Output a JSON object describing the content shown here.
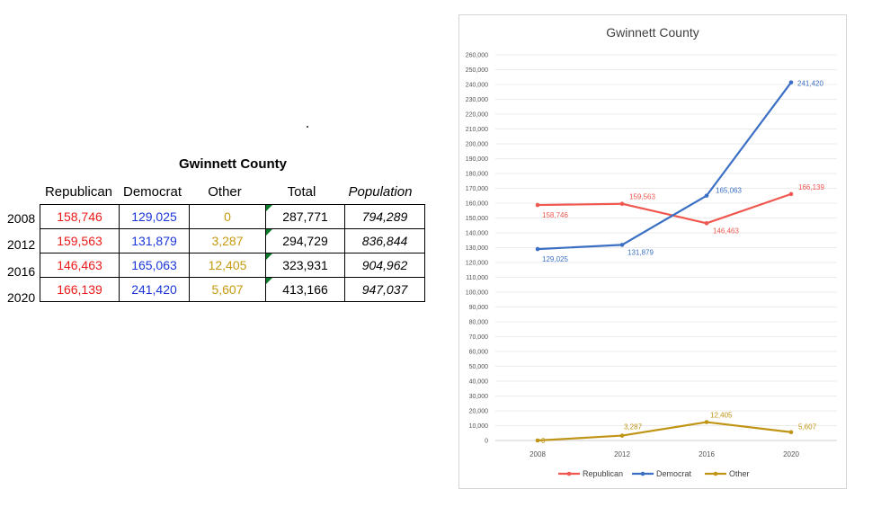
{
  "table": {
    "title": "Gwinnett County",
    "headers": [
      "Republican",
      "Democrat",
      "Other",
      "Total",
      "Population"
    ],
    "rows": [
      {
        "year": "2008",
        "republican": "158,746",
        "democrat": "129,025",
        "other": "0",
        "total": "287,771",
        "population": "794,289"
      },
      {
        "year": "2012",
        "republican": "159,563",
        "democrat": "131,879",
        "other": "3,287",
        "total": "294,729",
        "population": "836,844"
      },
      {
        "year": "2016",
        "republican": "146,463",
        "democrat": "165,063",
        "other": "12,405",
        "total": "323,931",
        "population": "904,962"
      },
      {
        "year": "2020",
        "republican": "166,139",
        "democrat": "241,420",
        "other": "5,607",
        "total": "413,166",
        "population": "947,037"
      }
    ]
  },
  "colors": {
    "republican_text": "#ea1a1a",
    "democrat_text": "#1a36d8",
    "other_text": "#c59a0e",
    "republican_line": "#f0574f",
    "democrat_line": "#3a6fc4",
    "other_line": "#c09414"
  },
  "chart_data": {
    "type": "line",
    "title": "Gwinnett County",
    "categories": [
      "2008",
      "2012",
      "2016",
      "2020"
    ],
    "series": [
      {
        "name": "Republican",
        "values": [
          158746,
          159563,
          146463,
          166139
        ],
        "labels": [
          "158,746",
          "159,563",
          "146,463",
          "166,139"
        ]
      },
      {
        "name": "Democrat",
        "values": [
          129025,
          131879,
          165063,
          241420
        ],
        "labels": [
          "129,025",
          "131,879",
          "165,063",
          "241,420"
        ]
      },
      {
        "name": "Other",
        "values": [
          0,
          3287,
          12405,
          5607
        ],
        "labels": [
          "0",
          "3,287",
          "12,405",
          "5,607"
        ]
      }
    ],
    "ylim": [
      0,
      260000
    ],
    "ytick_step": 10000,
    "ytick_labels": [
      "0",
      "10,000",
      "20,000",
      "30,000",
      "40,000",
      "50,000",
      "60,000",
      "70,000",
      "80,000",
      "90,000",
      "100,000",
      "110,000",
      "120,000",
      "130,000",
      "140,000",
      "150,000",
      "160,000",
      "170,000",
      "180,000",
      "190,000",
      "200,000",
      "210,000",
      "220,000",
      "230,000",
      "240,000",
      "250,000",
      "260,000"
    ],
    "xlabel": "",
    "ylabel": "",
    "grid": true,
    "legend": "bottom"
  }
}
